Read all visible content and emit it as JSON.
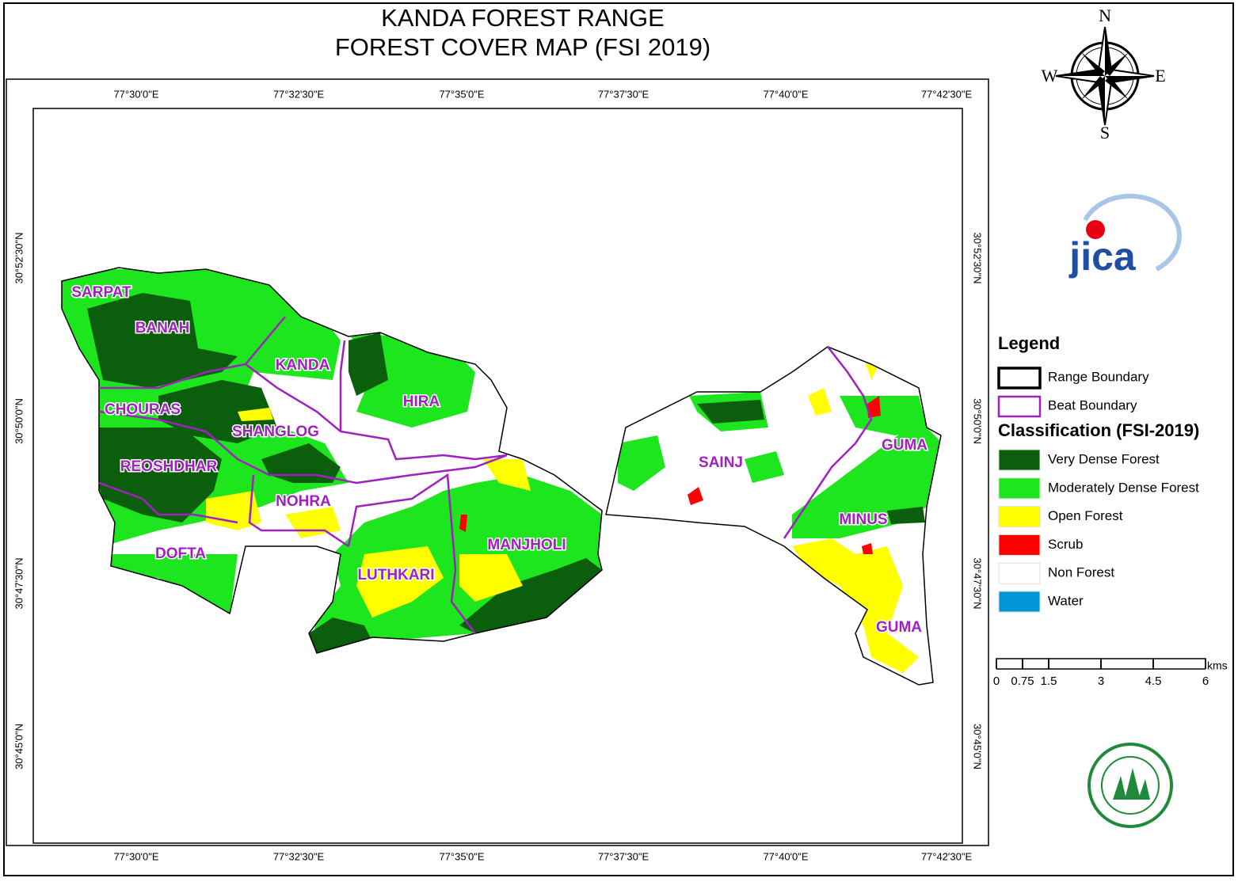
{
  "header": {
    "title_lines": [
      "KANDA FOREST RANGE",
      "FOREST COVER MAP (FSI 2019)"
    ]
  },
  "graticule": {
    "lon_labels": [
      "77°30'0\"E",
      "77°32'30\"E",
      "77°35'0\"E",
      "77°37'30\"E",
      "77°40'0\"E",
      "77°42'30\"E"
    ],
    "lat_labels": [
      "30°52'30\"N",
      "30°50'0\"N",
      "30°47'30\"N",
      "30°45'0\"N"
    ]
  },
  "compass": {
    "n": "N",
    "e": "E",
    "s": "S",
    "w": "W"
  },
  "logo": {
    "text": "jica"
  },
  "beats": [
    "SARPAT",
    "BANAH",
    "KANDA",
    "HIRA",
    "CHOURAS",
    "SHANGLOG",
    "REOSHDHAR",
    "NOHRA",
    "DOFTA",
    "LUTHKARI",
    "MANJHOLI",
    "SAINJ",
    "GUMA",
    "MINUS",
    "GUMA"
  ],
  "legend": {
    "title": "Legend",
    "boundaries": [
      {
        "label": "Range Boundary",
        "color": "#000000"
      },
      {
        "label": "Beat Boundary",
        "color": "#a020c0"
      }
    ],
    "classification_title": "Classification (FSI-2019)",
    "classes": [
      {
        "label": "Very Dense Forest",
        "color": "#0b5e0b"
      },
      {
        "label": "Moderately Dense Forest",
        "color": "#1ee61e"
      },
      {
        "label": "Open Forest",
        "color": "#ffff00"
      },
      {
        "label": "Scrub",
        "color": "#ff0000"
      },
      {
        "label": "Non Forest",
        "color": "#ffffff"
      },
      {
        "label": "Water",
        "color": "#0095d9"
      }
    ]
  },
  "scale_bar": {
    "unit": "kms",
    "ticks": [
      0,
      0.75,
      1.5,
      3,
      4.5,
      6
    ]
  }
}
